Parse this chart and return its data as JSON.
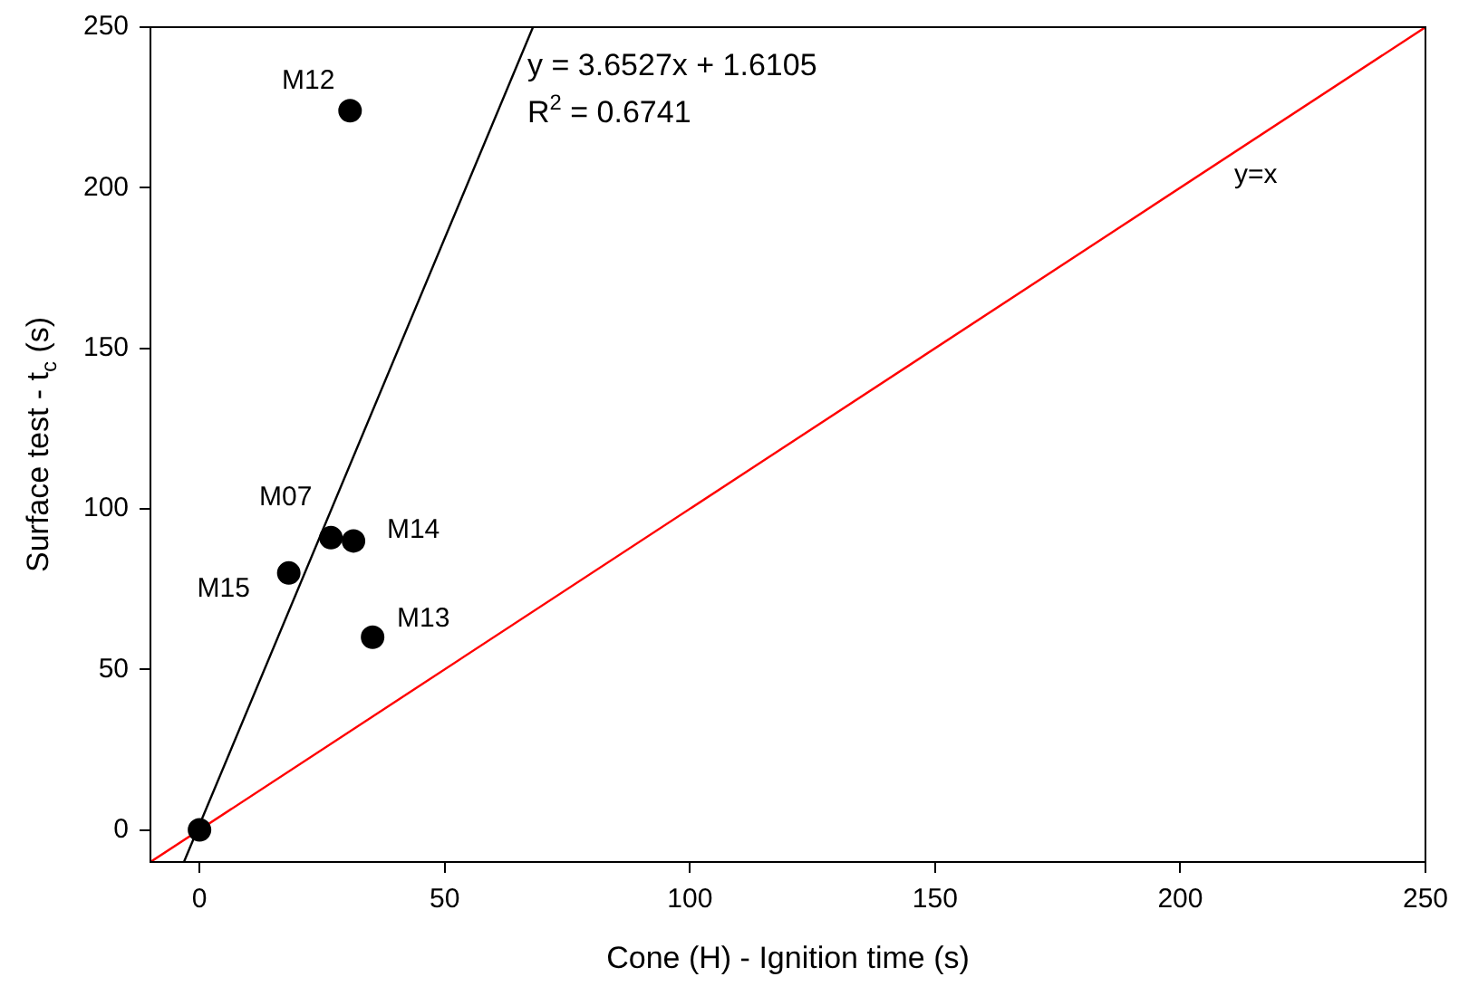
{
  "chart_data": {
    "type": "scatter",
    "xlabel": "Cone (H) - Ignition time (s)",
    "ylabel": "Surface test - t$_{c}$ (s)",
    "series": [
      {
        "color": "#000000",
        "x": [
          0,
          30.7,
          26.8,
          31.4,
          18.2,
          35.3
        ],
        "values": [
          0,
          224,
          91,
          90,
          80,
          60
        ]
      },
      {
        "type": "line",
        "marker": "none",
        "color": "#000000",
        "x": [
          -3.18,
          68.0
        ],
        "values": [
          -10,
          250
        ]
      },
      {
        "type": "line",
        "marker": "none",
        "color": "#ff0000",
        "x": [
          -10,
          250
        ],
        "values": [
          -10,
          250
        ]
      }
    ],
    "marker": "circle",
    "line_style": "solid",
    "grid": false,
    "legend": false,
    "xlim": [
      -10,
      250
    ],
    "ylim": [
      -10,
      250
    ],
    "xticks": [
      0,
      50,
      100,
      150,
      200,
      250
    ],
    "yticks": [
      0,
      50,
      100,
      150,
      200,
      250
    ],
    "annotations": [
      {
        "text": "M12",
        "x": 30.7,
        "y": 224
      },
      {
        "text": "M07",
        "x": 26.8,
        "y": 91
      },
      {
        "text": "M14",
        "x": 31.4,
        "y": 90
      },
      {
        "text": "M15",
        "x": 18.2,
        "y": 80
      },
      {
        "text": "M13",
        "x": 35.3,
        "y": 60
      },
      "y = 3.6527x + 1.6105",
      "R$^{2}$ = 0.6741",
      "y=x"
    ]
  }
}
